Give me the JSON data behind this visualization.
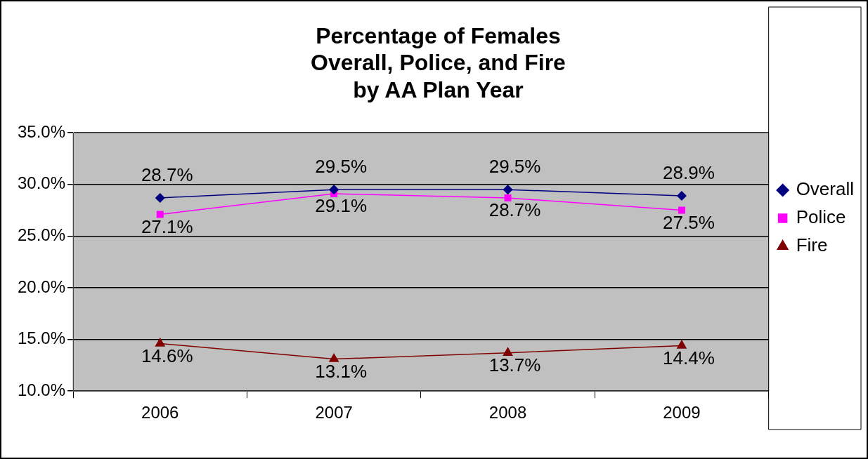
{
  "chart_data": {
    "type": "line",
    "title": "Percentage of Females\nOverall, Police, and Fire\nby AA Plan Year",
    "categories": [
      "2006",
      "2007",
      "2008",
      "2009"
    ],
    "series": [
      {
        "name": "Overall",
        "color": "#000080",
        "marker": "diamond",
        "values": [
          28.7,
          29.5,
          29.5,
          28.9
        ],
        "value_labels": [
          "28.7%",
          "29.5%",
          "29.5%",
          "28.9%"
        ]
      },
      {
        "name": "Police",
        "color": "#ff00ff",
        "marker": "square",
        "values": [
          27.1,
          29.1,
          28.7,
          27.5
        ],
        "value_labels": [
          "27.1%",
          "29.1%",
          "28.7%",
          "27.5%"
        ]
      },
      {
        "name": "Fire",
        "color": "#800000",
        "marker": "triangle",
        "values": [
          14.6,
          13.1,
          13.7,
          14.4
        ],
        "value_labels": [
          "14.6%",
          "13.1%",
          "13.7%",
          "14.4%"
        ]
      }
    ],
    "ylim": [
      10,
      35
    ],
    "yticks": [
      {
        "value": 10,
        "label": "10.0%"
      },
      {
        "value": 15,
        "label": "15.0%"
      },
      {
        "value": 20,
        "label": "20.0%"
      },
      {
        "value": 25,
        "label": "25.0%"
      },
      {
        "value": 30,
        "label": "30.0%"
      },
      {
        "value": 35,
        "label": "35.0%"
      }
    ],
    "grid": "y",
    "legend": "right"
  }
}
